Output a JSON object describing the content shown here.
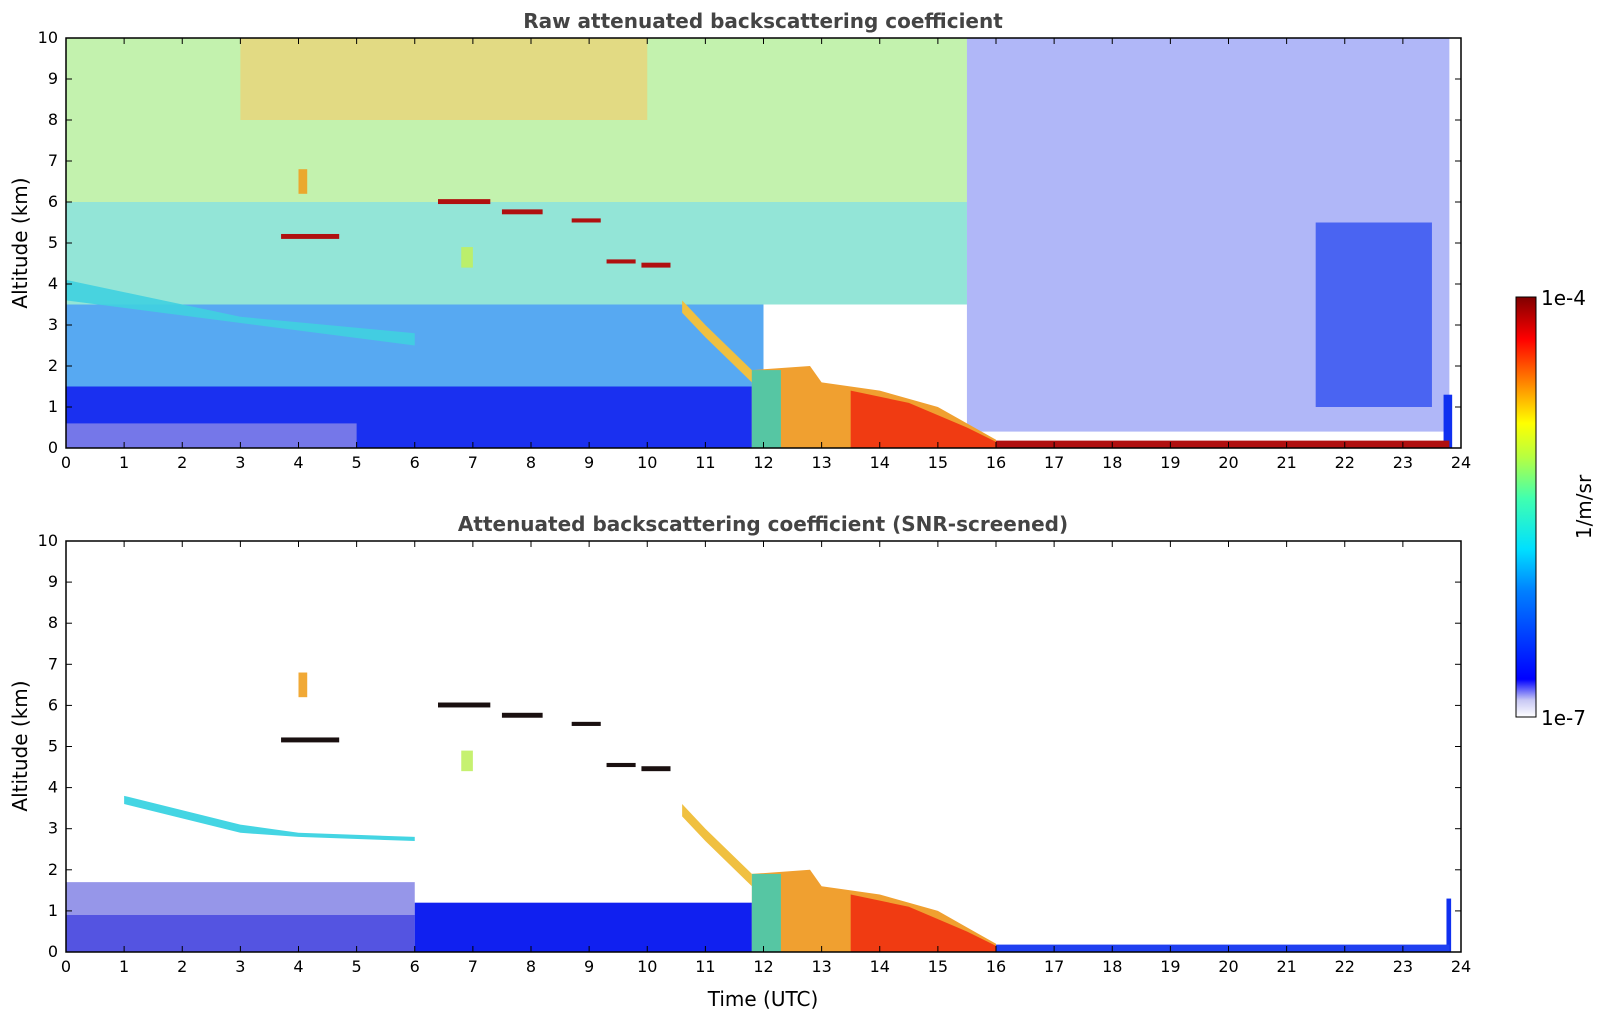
{
  "chart_data": [
    {
      "type": "heatmap",
      "title": "Raw attenuated backscattering coefficient",
      "xlabel": "",
      "ylabel": "Altitude (km)",
      "xlim": [
        0,
        24
      ],
      "ylim": [
        0,
        10
      ],
      "xticks": [
        "0",
        "1",
        "2",
        "3",
        "4",
        "5",
        "6",
        "7",
        "8",
        "9",
        "10",
        "11",
        "12",
        "13",
        "14",
        "15",
        "16",
        "17",
        "18",
        "19",
        "20",
        "21",
        "22",
        "23",
        "24"
      ],
      "yticks": [
        "0",
        "1",
        "2",
        "3",
        "4",
        "5",
        "6",
        "7",
        "8",
        "9",
        "10"
      ],
      "features": [
        {
          "desc": "aerosol layer",
          "x": [
            0.0,
            6.0
          ],
          "y_top_km": [
            4.0,
            2.8
          ]
        },
        {
          "desc": "elevated cloud layers",
          "x": [
            3.7,
            10.5
          ],
          "y_km": [
            4.2,
            6.1
          ]
        },
        {
          "desc": "boundary layer top",
          "x": [
            11.8,
            16.0
          ],
          "y_top_km": [
            2.1,
            0.2
          ]
        },
        {
          "desc": "low surface layer",
          "x": [
            16.0,
            23.8
          ],
          "y_top_km": [
            0.2,
            0.2
          ]
        }
      ]
    },
    {
      "type": "heatmap",
      "title": "Attenuated backscattering coefficient (SNR-screened)",
      "xlabel": "Time (UTC)",
      "ylabel": "Altitude (km)",
      "xlim": [
        0,
        24
      ],
      "ylim": [
        0,
        10
      ],
      "xticks": [
        "0",
        "1",
        "2",
        "3",
        "4",
        "5",
        "6",
        "7",
        "8",
        "9",
        "10",
        "11",
        "12",
        "13",
        "14",
        "15",
        "16",
        "17",
        "18",
        "19",
        "20",
        "21",
        "22",
        "23",
        "24"
      ],
      "yticks": [
        "0",
        "1",
        "2",
        "3",
        "4",
        "5",
        "6",
        "7",
        "8",
        "9",
        "10"
      ]
    }
  ],
  "colorbar": {
    "label": "1/m/sr",
    "max_label": "1e-4",
    "min_label": "1e-7",
    "scale": "log",
    "range": [
      1e-07,
      0.0001
    ],
    "colormap": "jet"
  }
}
